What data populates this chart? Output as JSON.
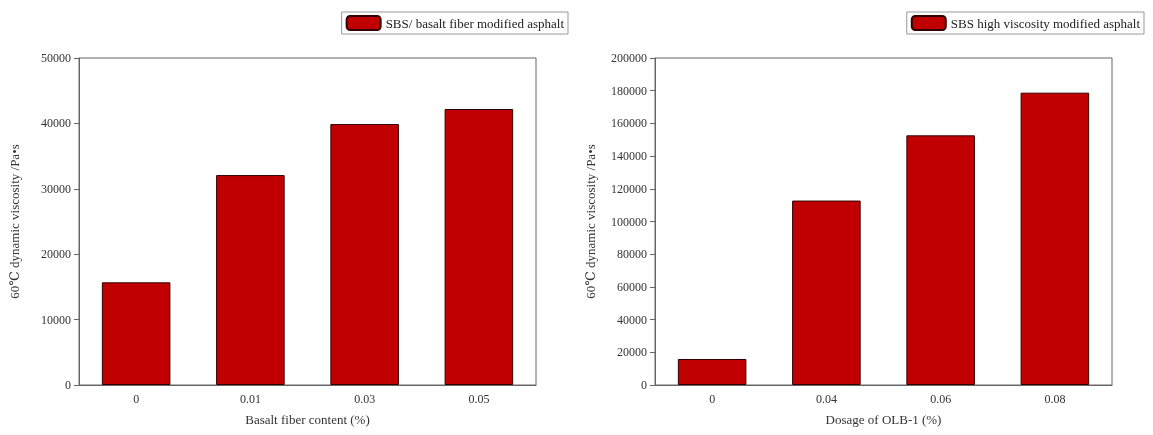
{
  "chart_data": [
    {
      "type": "bar",
      "xlabel": "Basalt fiber content (%)",
      "ylabel": "60℃ dynamic viscosity /Pa•s",
      "categories": [
        "0",
        "0.01",
        "0.03",
        "0.05"
      ],
      "series": [
        {
          "name": "SBS/ basalt fiber modified asphalt",
          "color": "#c00000",
          "values": [
            15700,
            32100,
            39900,
            42200
          ]
        }
      ],
      "ylim": [
        0,
        50000
      ],
      "yticks": [
        0,
        10000,
        20000,
        30000,
        40000,
        50000
      ],
      "grid": false,
      "legend": "top right"
    },
    {
      "type": "bar",
      "xlabel": "Dosage of OLB-1 (%)",
      "ylabel": "60℃ dynamic viscosity /Pa•s",
      "categories": [
        "0",
        "0.04",
        "0.06",
        "0.08"
      ],
      "series": [
        {
          "name": "SBS high viscosity modified asphalt",
          "color": "#c00000",
          "values": [
            15900,
            112800,
            152700,
            178800
          ]
        }
      ],
      "ylim": [
        0,
        200000
      ],
      "yticks": [
        0,
        20000,
        40000,
        60000,
        80000,
        100000,
        120000,
        140000,
        160000,
        180000,
        200000
      ],
      "grid": false,
      "legend": "top right"
    }
  ]
}
